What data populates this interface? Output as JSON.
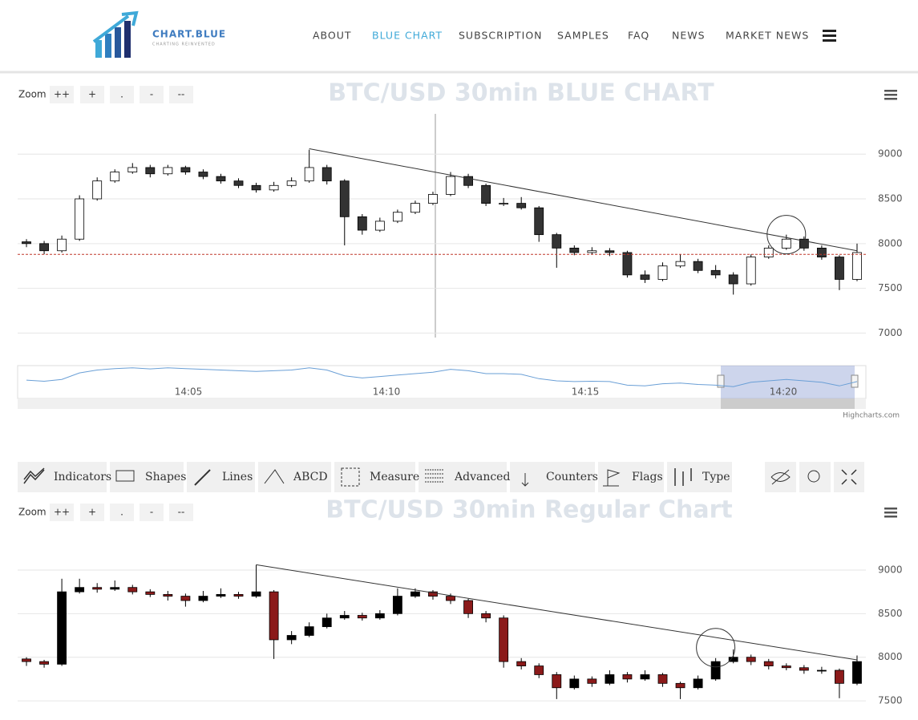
{
  "header": {
    "logo_title": "CHART.BLUE",
    "logo_tagline": "CHARTING REINVENTED",
    "nav": [
      "ABOUT",
      "BLUE CHART",
      "SUBSCRIPTION",
      "SAMPLES",
      "FAQ",
      "NEWS",
      "MARKET NEWS"
    ]
  },
  "toolbar": [
    "Indicators",
    "Shapes",
    "Lines",
    "ABCD",
    "Measure",
    "Advanced",
    "Counters",
    "Flags",
    "Type"
  ],
  "navigator": {
    "labels": [
      "14:05",
      "14:10",
      "14:15",
      "14:20"
    ]
  },
  "credit": "Highcharts.com",
  "chart_data": [
    {
      "type": "candlestick",
      "title": "BTC/USD 30min BLUE CHART",
      "zoom_label": "Zoom",
      "zoom_buttons": [
        "++",
        "+",
        ".",
        "-",
        "--"
      ],
      "ylim": [
        6950,
        9450
      ],
      "yticks": [
        7000,
        7500,
        8000,
        8500,
        9000
      ],
      "grid": true,
      "up_color": "#ffffff",
      "down_color": "#333333",
      "candles": [
        [
          8020,
          8050,
          7960,
          8000
        ],
        [
          8000,
          8030,
          7880,
          7920
        ],
        [
          7920,
          8090,
          7900,
          8050
        ],
        [
          8050,
          8540,
          8030,
          8500
        ],
        [
          8500,
          8740,
          8480,
          8700
        ],
        [
          8700,
          8830,
          8680,
          8800
        ],
        [
          8800,
          8900,
          8780,
          8850
        ],
        [
          8850,
          8880,
          8740,
          8780
        ],
        [
          8780,
          8880,
          8760,
          8850
        ],
        [
          8850,
          8870,
          8770,
          8800
        ],
        [
          8800,
          8830,
          8720,
          8750
        ],
        [
          8750,
          8780,
          8670,
          8700
        ],
        [
          8700,
          8730,
          8620,
          8650
        ],
        [
          8650,
          8680,
          8570,
          8600
        ],
        [
          8600,
          8690,
          8580,
          8650
        ],
        [
          8650,
          8740,
          8630,
          8700
        ],
        [
          8700,
          9050,
          8680,
          8850
        ],
        [
          8850,
          8880,
          8660,
          8700
        ],
        [
          8700,
          8720,
          7980,
          8300
        ],
        [
          8300,
          8330,
          8100,
          8150
        ],
        [
          8150,
          8290,
          8130,
          8250
        ],
        [
          8250,
          8380,
          8230,
          8350
        ],
        [
          8350,
          8480,
          8330,
          8450
        ],
        [
          8450,
          8580,
          8430,
          8550
        ],
        [
          8550,
          8800,
          8530,
          8750
        ],
        [
          8750,
          8780,
          8620,
          8650
        ],
        [
          8650,
          8670,
          8420,
          8450
        ],
        [
          8450,
          8510,
          8420,
          8450
        ],
        [
          8450,
          8520,
          8380,
          8400
        ],
        [
          8400,
          8420,
          8020,
          8100
        ],
        [
          8100,
          8120,
          7730,
          7950
        ],
        [
          7950,
          7980,
          7870,
          7900
        ],
        [
          7900,
          7960,
          7880,
          7920
        ],
        [
          7920,
          7950,
          7860,
          7900
        ],
        [
          7900,
          7920,
          7620,
          7650
        ],
        [
          7650,
          7700,
          7560,
          7600
        ],
        [
          7600,
          7790,
          7580,
          7750
        ],
        [
          7750,
          7880,
          7730,
          7800
        ],
        [
          7800,
          7830,
          7670,
          7700
        ],
        [
          7700,
          7760,
          7610,
          7650
        ],
        [
          7650,
          7680,
          7430,
          7550
        ],
        [
          7550,
          7880,
          7530,
          7850
        ],
        [
          7850,
          7980,
          7830,
          7950
        ],
        [
          7950,
          8100,
          7930,
          8050
        ],
        [
          8050,
          8080,
          7920,
          7950
        ],
        [
          7950,
          7980,
          7820,
          7850
        ],
        [
          7850,
          7870,
          7480,
          7600
        ],
        [
          7600,
          8000,
          7580,
          7900
        ]
      ],
      "annotations": {
        "trendline": [
          [
            16,
            9060
          ],
          [
            47,
            7920
          ]
        ],
        "circle": [
          43,
          8100
        ],
        "price_line": 7880
      }
    },
    {
      "type": "candlestick",
      "title": "BTC/USD 30min Regular Chart",
      "zoom_label": "Zoom",
      "zoom_buttons": [
        "++",
        "+",
        ".",
        "-",
        "--"
      ],
      "ylim": [
        7280,
        9450
      ],
      "yticks": [
        7500,
        8000,
        8500,
        9000
      ],
      "grid": true,
      "up_color": "#000000",
      "down_color": "#8b1a1a",
      "candles": [
        [
          7980,
          8000,
          7900,
          7950
        ],
        [
          7950,
          7970,
          7880,
          7920
        ],
        [
          7920,
          8900,
          7900,
          8750
        ],
        [
          8750,
          8900,
          8730,
          8800
        ],
        [
          8800,
          8850,
          8740,
          8780
        ],
        [
          8780,
          8880,
          8760,
          8800
        ],
        [
          8800,
          8830,
          8720,
          8750
        ],
        [
          8750,
          8780,
          8690,
          8720
        ],
        [
          8720,
          8760,
          8650,
          8700
        ],
        [
          8700,
          8730,
          8580,
          8650
        ],
        [
          8650,
          8760,
          8630,
          8700
        ],
        [
          8700,
          8790,
          8680,
          8720
        ],
        [
          8720,
          8750,
          8670,
          8700
        ],
        [
          8700,
          9060,
          8680,
          8750
        ],
        [
          8750,
          8770,
          7980,
          8200
        ],
        [
          8200,
          8300,
          8150,
          8250
        ],
        [
          8250,
          8400,
          8230,
          8350
        ],
        [
          8350,
          8500,
          8330,
          8450
        ],
        [
          8450,
          8530,
          8430,
          8480
        ],
        [
          8480,
          8510,
          8420,
          8450
        ],
        [
          8450,
          8540,
          8430,
          8500
        ],
        [
          8500,
          8790,
          8480,
          8700
        ],
        [
          8700,
          8790,
          8680,
          8750
        ],
        [
          8750,
          8770,
          8660,
          8700
        ],
        [
          8700,
          8730,
          8610,
          8650
        ],
        [
          8650,
          8670,
          8450,
          8500
        ],
        [
          8500,
          8530,
          8400,
          8450
        ],
        [
          8450,
          8480,
          7880,
          7950
        ],
        [
          7950,
          7990,
          7860,
          7900
        ],
        [
          7900,
          7930,
          7760,
          7800
        ],
        [
          7800,
          7830,
          7520,
          7650
        ],
        [
          7650,
          7790,
          7630,
          7750
        ],
        [
          7750,
          7780,
          7660,
          7700
        ],
        [
          7700,
          7850,
          7680,
          7800
        ],
        [
          7800,
          7830,
          7710,
          7750
        ],
        [
          7750,
          7850,
          7730,
          7800
        ],
        [
          7800,
          7820,
          7660,
          7700
        ],
        [
          7700,
          7720,
          7520,
          7650
        ],
        [
          7650,
          7790,
          7630,
          7750
        ],
        [
          7750,
          7990,
          7730,
          7950
        ],
        [
          7950,
          8090,
          7930,
          8000
        ],
        [
          8000,
          8030,
          7910,
          7950
        ],
        [
          7950,
          7980,
          7860,
          7900
        ],
        [
          7900,
          7930,
          7850,
          7880
        ],
        [
          7880,
          7910,
          7810,
          7850
        ],
        [
          7850,
          7890,
          7810,
          7850
        ],
        [
          7850,
          7870,
          7530,
          7700
        ],
        [
          7700,
          8020,
          7680,
          7950
        ]
      ],
      "annotations": {
        "trendline": [
          [
            13,
            9060
          ],
          [
            47,
            7970
          ]
        ],
        "circle": [
          39,
          8110
        ]
      }
    }
  ]
}
